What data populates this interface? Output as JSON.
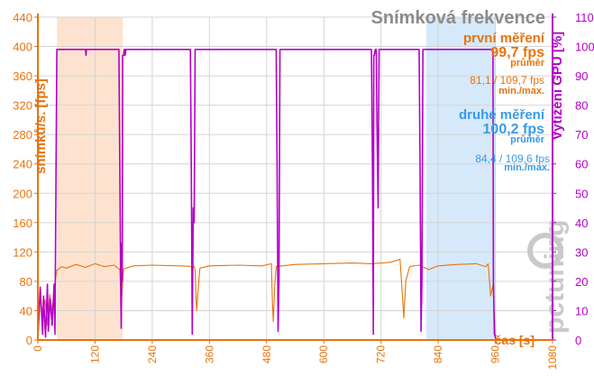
{
  "chart_data": {
    "type": "line",
    "title": "Snímková frekvence",
    "xlabel": "čas [s]",
    "ylabel_left": "snímků/s. [fps]",
    "ylabel_right": "Vytížení GPU [%]",
    "xlim": [
      0,
      1080
    ],
    "ylim_left": [
      0,
      440
    ],
    "ylim_right": [
      0,
      110
    ],
    "xticks": [
      0,
      120,
      240,
      360,
      480,
      600,
      720,
      840,
      960,
      1080
    ],
    "yticks_left": [
      0,
      40,
      80,
      120,
      160,
      200,
      240,
      280,
      320,
      360,
      400,
      440
    ],
    "yticks_right": [
      0,
      10,
      20,
      30,
      40,
      50,
      60,
      70,
      80,
      90,
      100,
      110
    ],
    "grid": true,
    "highlight_regions": [
      {
        "from": 40,
        "to": 178,
        "color": "#fde3cf"
      },
      {
        "from": 815,
        "to": 960,
        "color": "#d6e9fa"
      }
    ],
    "series": [
      {
        "name": "Snímková frekvence (fps)",
        "axis": "left",
        "color": "#e8730c",
        "x": [
          0,
          5,
          10,
          15,
          20,
          25,
          30,
          35,
          40,
          50,
          60,
          80,
          100,
          120,
          140,
          160,
          172,
          175,
          178,
          180,
          200,
          240,
          300,
          328,
          330,
          333,
          336,
          340,
          360,
          420,
          470,
          490,
          492,
          494,
          497,
          500,
          540,
          600,
          660,
          700,
          740,
          760,
          765,
          768,
          772,
          780,
          800,
          820,
          840,
          880,
          920,
          940,
          945,
          950,
          955,
          960,
          965
        ],
        "values": [
          0,
          60,
          35,
          55,
          20,
          62,
          40,
          75,
          95,
          100,
          98,
          103,
          99,
          104,
          100,
          102,
          96,
          45,
          80,
          97,
          101,
          102,
          101,
          100,
          95,
          40,
          65,
          98,
          101,
          102,
          101,
          104,
          55,
          25,
          75,
          100,
          103,
          104,
          105,
          104,
          106,
          110,
          60,
          30,
          80,
          100,
          102,
          96,
          101,
          103,
          104,
          100,
          104,
          60,
          75,
          3,
          0
        ]
      },
      {
        "name": "Vytížení GPU (%)",
        "axis": "right",
        "color": "#b400c8",
        "x": [
          0,
          5,
          10,
          12,
          16,
          20,
          22,
          26,
          30,
          34,
          36,
          38,
          40,
          100,
          101,
          102,
          103,
          170,
          172,
          174,
          175,
          176,
          177,
          178,
          180,
          181,
          182,
          183,
          185,
          320,
          322,
          324,
          326,
          328,
          330,
          332,
          334,
          500,
          502,
          504,
          506,
          508,
          510,
          512,
          514,
          700,
          702,
          704,
          705,
          706,
          708,
          710,
          712,
          714,
          716,
          718,
          720,
          800,
          802,
          804,
          806,
          808,
          810,
          812,
          955,
          956,
          958,
          962,
          965,
          1080
        ],
        "values": [
          1,
          18,
          2,
          15,
          1,
          19,
          3,
          14,
          5,
          19,
          2,
          55,
          99,
          99,
          97,
          99,
          99,
          99,
          60,
          15,
          4,
          33,
          20,
          97,
          97,
          99,
          99,
          97,
          99,
          99,
          60,
          2,
          45,
          40,
          99,
          99,
          99,
          99,
          60,
          3,
          20,
          99,
          99,
          99,
          99,
          99,
          60,
          2,
          97,
          97,
          99,
          99,
          70,
          45,
          99,
          99,
          99,
          99,
          60,
          3,
          20,
          99,
          99,
          99,
          99,
          20,
          2,
          0,
          0,
          0
        ]
      }
    ],
    "annotations": [
      {
        "key": "run1_name",
        "text": "první měření"
      },
      {
        "key": "run1_avg",
        "text": "99,7 fps"
      },
      {
        "key": "run1_avg_label",
        "text": "průměr"
      },
      {
        "key": "run1_minmax",
        "text": "81,1 / 109,7 fps"
      },
      {
        "key": "run1_minmax_label",
        "text": "min./max."
      },
      {
        "key": "run2_name",
        "text": "druhé měření"
      },
      {
        "key": "run2_avg",
        "text": "100,2 fps"
      },
      {
        "key": "run2_avg_label",
        "text": "průměr"
      },
      {
        "key": "run2_minmax",
        "text": "84,4 / 109,6 fps"
      },
      {
        "key": "run2_minmax_label",
        "text": "min./max."
      }
    ],
    "watermark": "pctuning"
  }
}
